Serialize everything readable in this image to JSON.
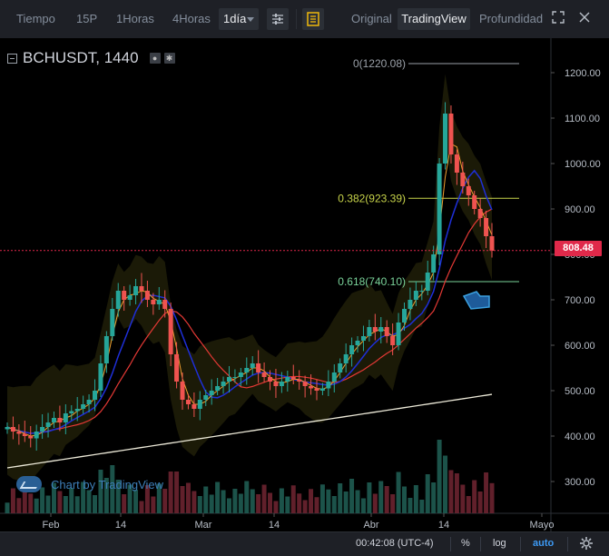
{
  "toolbar": {
    "intervals": [
      "Tiempo",
      "15P",
      "1Horas",
      "4Horas"
    ],
    "selected_interval": "1día",
    "settings_icon": "sliders-icon",
    "indicators_icon": "indicator-list-icon",
    "views": [
      "Original",
      "TradingView",
      "Profundidad"
    ],
    "active_view": "TradingView",
    "expand_icon": "expand-icon",
    "close_icon": "close-icon"
  },
  "chart": {
    "symbol": "BCHUSDT, 1440",
    "current_price": "808.48",
    "watermark": "Chart by TradingView",
    "colors": {
      "up": "#26a69a",
      "down": "#ef5350",
      "price_tag": "#e0294a",
      "fib": "#c8d44a",
      "fib2": "#7ad39a"
    }
  },
  "chart_data": {
    "type": "candlestick",
    "y_axis_ticks": [
      "1200.00",
      "1100.00",
      "1000.00",
      "900.00",
      "800.00",
      "700.00",
      "600.00",
      "500.00",
      "400.00",
      "300.00"
    ],
    "ylim": [
      260,
      1240
    ],
    "x_axis_ticks": [
      "Feb",
      "14",
      "Mar",
      "14",
      "Abr",
      "14",
      "Mayo"
    ],
    "fibonacci_levels": [
      {
        "label": "0(1220.08)",
        "value": 1220.08
      },
      {
        "label": "0.382(923.39)",
        "value": 923.39
      },
      {
        "label": "0.618(740.10)",
        "value": 740.1
      }
    ],
    "last_price": 808.48
  },
  "bottom": {
    "time": "00:42:08 (UTC-4)",
    "percent": "%",
    "log": "log",
    "auto": "auto",
    "settings_icon": "gear-icon"
  }
}
